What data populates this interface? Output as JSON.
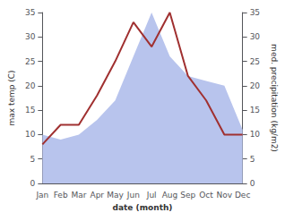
{
  "chart_data": {
    "type": "line",
    "xlabel": "date (month)",
    "ylabel": "max temp (C)",
    "y2label": "med. precipitation (kg/m2)",
    "categories": [
      "Jan",
      "Feb",
      "Mar",
      "Apr",
      "May",
      "Jun",
      "Jul",
      "Aug",
      "Sep",
      "Oct",
      "Nov",
      "Dec"
    ],
    "series": [
      {
        "type": "area",
        "color": "#b8c4ed",
        "axis": "y2",
        "values": [
          10,
          9,
          10,
          13,
          17,
          26,
          35,
          26,
          22,
          21,
          20,
          11
        ]
      },
      {
        "type": "line",
        "color": "#a03030",
        "values": [
          8,
          12,
          12,
          18,
          25,
          33,
          28,
          35,
          22,
          17,
          10,
          10
        ]
      }
    ],
    "ylim": [
      0,
      35
    ],
    "yticks": [
      0,
      5,
      10,
      15,
      20,
      25,
      30,
      35
    ],
    "y2lim": [
      0,
      35
    ],
    "y2ticks": [
      0,
      5,
      10,
      15,
      20,
      25,
      30,
      35
    ],
    "grid": false
  }
}
